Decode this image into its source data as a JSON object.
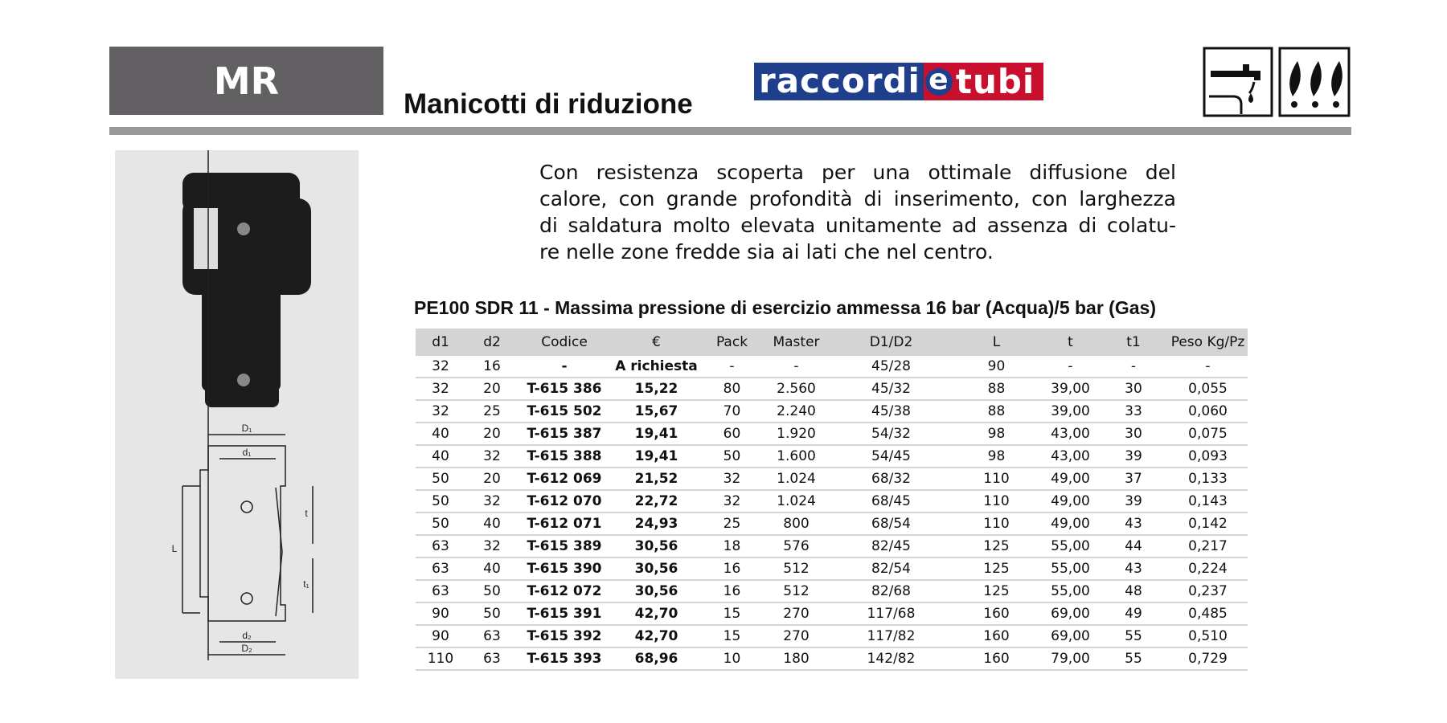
{
  "header": {
    "code": "MR",
    "title": "Manicotti di riduzione",
    "brand": {
      "part1": "raccordi",
      "part2": "e",
      "part3": "tubi"
    }
  },
  "description": {
    "lines": [
      "Con resistenza scoperta per una ottimale diffusione del",
      "calore, con grande profondità di inserimento, con larghezza",
      "di saldatura molto elevata unitamente ad assenza di colatu-",
      "re nelle zone fredde sia ai lati che nel centro."
    ]
  },
  "drawing": {
    "labels": [
      "D₁",
      "d₁",
      "t",
      "L",
      "t₁",
      "d₂",
      "D₂"
    ]
  },
  "table": {
    "title": "PE100 SDR 11 - Massima pressione di esercizio ammessa 16 bar (Acqua)/5 bar (Gas)",
    "columns": [
      "d1",
      "d2",
      "Codice",
      "€",
      "Pack",
      "Master",
      "D1/D2",
      "L",
      "t",
      "t1",
      "Peso Kg/Pz"
    ],
    "rows": [
      [
        "32",
        "16",
        "-",
        "A richiesta",
        "-",
        "-",
        "45/28",
        "90",
        "-",
        "-",
        "-"
      ],
      [
        "32",
        "20",
        "T-615 386",
        "15,22",
        "80",
        "2.560",
        "45/32",
        "88",
        "39,00",
        "30",
        "0,055"
      ],
      [
        "32",
        "25",
        "T-615 502",
        "15,67",
        "70",
        "2.240",
        "45/38",
        "88",
        "39,00",
        "33",
        "0,060"
      ],
      [
        "40",
        "20",
        "T-615 387",
        "19,41",
        "60",
        "1.920",
        "54/32",
        "98",
        "43,00",
        "30",
        "0,075"
      ],
      [
        "40",
        "32",
        "T-615 388",
        "19,41",
        "50",
        "1.600",
        "54/45",
        "98",
        "43,00",
        "39",
        "0,093"
      ],
      [
        "50",
        "20",
        "T-612 069",
        "21,52",
        "32",
        "1.024",
        "68/32",
        "110",
        "49,00",
        "37",
        "0,133"
      ],
      [
        "50",
        "32",
        "T-612 070",
        "22,72",
        "32",
        "1.024",
        "68/45",
        "110",
        "49,00",
        "39",
        "0,143"
      ],
      [
        "50",
        "40",
        "T-612 071",
        "24,93",
        "25",
        "800",
        "68/54",
        "110",
        "49,00",
        "43",
        "0,142"
      ],
      [
        "63",
        "32",
        "T-615 389",
        "30,56",
        "18",
        "576",
        "82/45",
        "125",
        "55,00",
        "44",
        "0,217"
      ],
      [
        "63",
        "40",
        "T-615 390",
        "30,56",
        "16",
        "512",
        "82/54",
        "125",
        "55,00",
        "43",
        "0,224"
      ],
      [
        "63",
        "50",
        "T-612 072",
        "30,56",
        "16",
        "512",
        "82/68",
        "125",
        "55,00",
        "48",
        "0,237"
      ],
      [
        "90",
        "50",
        "T-615 391",
        "42,70",
        "15",
        "270",
        "117/68",
        "160",
        "69,00",
        "49",
        "0,485"
      ],
      [
        "90",
        "63",
        "T-615 392",
        "42,70",
        "15",
        "270",
        "117/82",
        "160",
        "69,00",
        "55",
        "0,510"
      ],
      [
        "110",
        "63",
        "T-615 393",
        "68,96",
        "10",
        "180",
        "142/82",
        "160",
        "79,00",
        "55",
        "0,729"
      ]
    ]
  }
}
